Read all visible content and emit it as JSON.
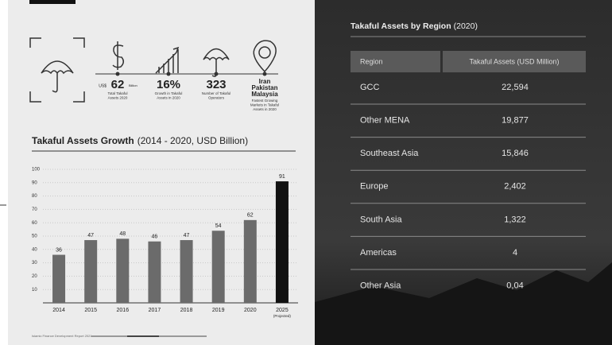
{
  "stats": [
    {
      "prefix": "US$",
      "value": "62",
      "suffix": "Billion",
      "caption": [
        "Total Takaful",
        "Assets 2020"
      ]
    },
    {
      "value": "16%",
      "caption": [
        "Growth in Takaful",
        "Assets in 2020"
      ]
    },
    {
      "value": "323",
      "caption": [
        "Number of Takaful",
        "Operators"
      ]
    },
    {
      "value_lines": [
        "Iran",
        "Pakistan",
        "Malaysia"
      ],
      "caption": [
        "Fastest Growing",
        "Markets in Takaful",
        "Assets in 2020"
      ]
    }
  ],
  "chart_data": {
    "type": "bar",
    "title": "Takaful Assets Growth",
    "subtitle": "(2014 - 2020, USD Billion)",
    "categories": [
      "2014",
      "2015",
      "2016",
      "2017",
      "2018",
      "2019",
      "2020",
      "2025"
    ],
    "category_notes": [
      null,
      null,
      null,
      null,
      null,
      null,
      null,
      "(Projected)"
    ],
    "values": [
      36,
      47,
      48,
      46,
      47,
      54,
      62,
      91
    ],
    "colors": [
      "#6b6b6b",
      "#6b6b6b",
      "#6b6b6b",
      "#6b6b6b",
      "#6b6b6b",
      "#6b6b6b",
      "#6b6b6b",
      "#111111"
    ],
    "ylim": [
      0,
      100
    ],
    "yticks": [
      10,
      20,
      30,
      40,
      50,
      60,
      70,
      80,
      90,
      100
    ],
    "grid": true
  },
  "footer": "Islamic Finance Development Report 2021",
  "table": {
    "title": "Takaful Assets by Region",
    "title_note": "(2020)",
    "header": [
      "Region",
      "Takaful Assets (USD Million)"
    ],
    "rows": [
      [
        "GCC",
        "22,594"
      ],
      [
        "Other MENA",
        "19,877"
      ],
      [
        "Southeast Asia",
        "15,846"
      ],
      [
        "Europe",
        "2,402"
      ],
      [
        "South Asia",
        "1,322"
      ],
      [
        "Americas",
        "4"
      ],
      [
        "Other Asia",
        "0,04"
      ]
    ]
  }
}
